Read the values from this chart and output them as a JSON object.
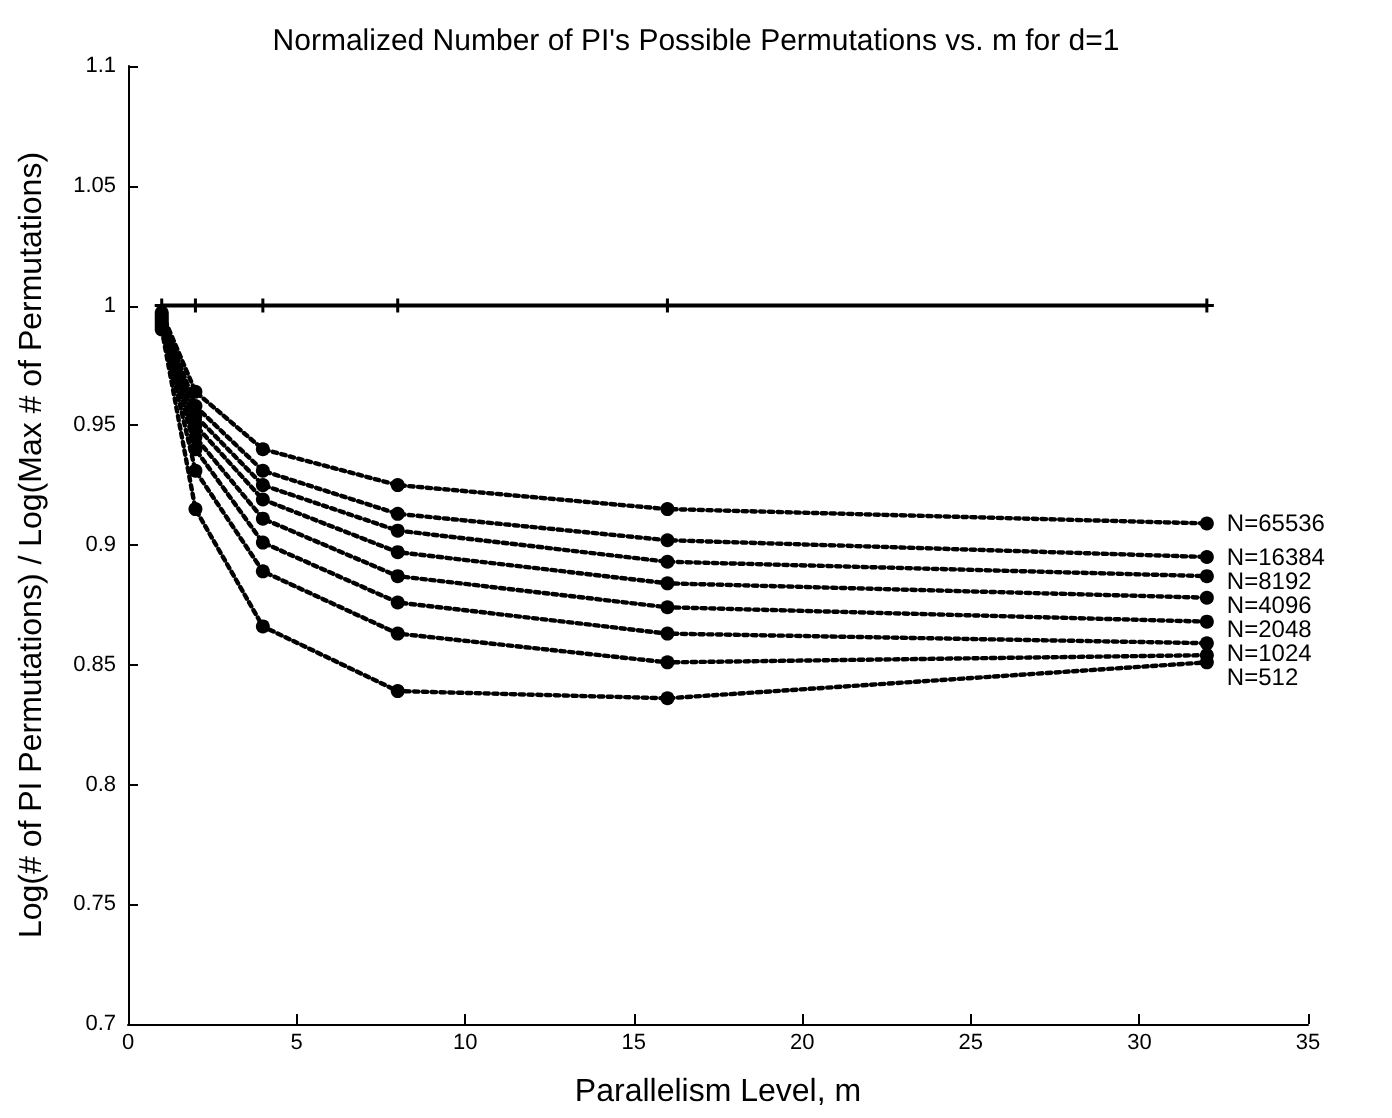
{
  "chart_data": {
    "type": "line",
    "title": "Normalized Number of PI's Possible Permutations vs. m for d=1",
    "xlabel": "Parallelism Level, m",
    "ylabel": "Log(# of PI Permutations) / Log(Max # of Permutations)",
    "x": [
      1,
      2,
      4,
      8,
      16,
      32
    ],
    "xlim": [
      0,
      35
    ],
    "xticks": [
      0,
      5,
      10,
      15,
      20,
      25,
      30,
      35
    ],
    "ylim": [
      0.7,
      1.1
    ],
    "yticks": [
      0.7,
      0.75,
      0.8,
      0.85,
      0.9,
      0.95,
      1,
      1.05,
      1.1
    ],
    "grid": false,
    "legend": false,
    "marker": "circle",
    "line_style": "dotted",
    "series": [
      {
        "color": "#000000",
        "marker": "cross",
        "line_style": "solid",
        "values": [
          1,
          1,
          1,
          1,
          1,
          1
        ]
      },
      {
        "name": "N=65536",
        "color": "#000000",
        "values": [
          0.997,
          0.964,
          0.94,
          0.925,
          0.915,
          0.909
        ]
      },
      {
        "name": "N=16384",
        "color": "#000000",
        "values": [
          0.996,
          0.958,
          0.931,
          0.913,
          0.902,
          0.895
        ]
      },
      {
        "name": "N=8192",
        "color": "#000000",
        "values": [
          0.995,
          0.954,
          0.925,
          0.906,
          0.893,
          0.887
        ]
      },
      {
        "name": "N=4096",
        "color": "#000000",
        "values": [
          0.994,
          0.95,
          0.919,
          0.897,
          0.884,
          0.878
        ]
      },
      {
        "name": "N=2048",
        "color": "#000000",
        "values": [
          0.993,
          0.945,
          0.911,
          0.887,
          0.874,
          0.868
        ]
      },
      {
        "name": "N=1024",
        "color": "#000000",
        "values": [
          0.992,
          0.94,
          0.901,
          0.876,
          0.863,
          0.859
        ]
      },
      {
        "color": "#000000",
        "values": [
          0.991,
          0.931,
          0.889,
          0.863,
          0.851,
          0.854
        ]
      },
      {
        "name": "N=512",
        "color": "#000000",
        "values": [
          0.99,
          0.915,
          0.866,
          0.839,
          0.836,
          0.851
        ]
      }
    ]
  }
}
